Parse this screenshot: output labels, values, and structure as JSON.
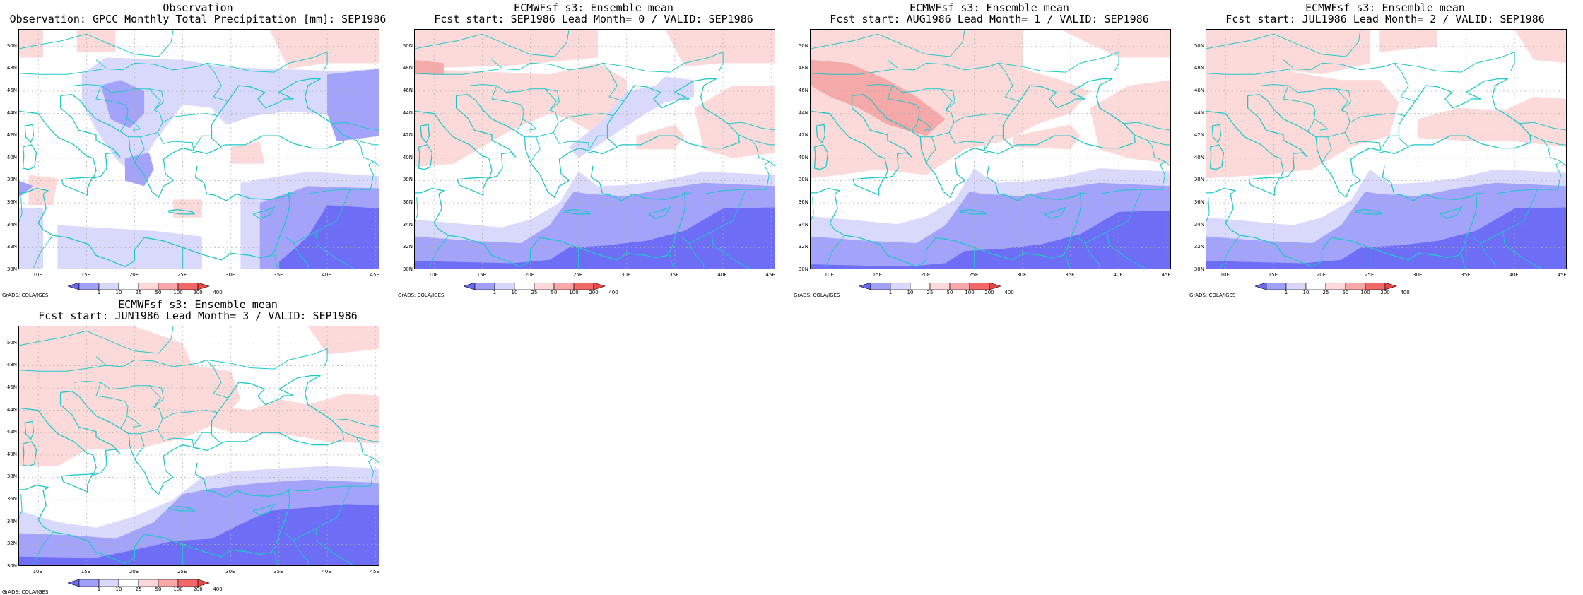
{
  "panels": [
    {
      "id": "p0",
      "title_line1": "Observation",
      "title_line2": "Observation: GPCC Monthly Total Precipitation [mm]: SEP1986",
      "variant": "obs"
    },
    {
      "id": "p1",
      "title_line1": "ECMWFsf s3: Ensemble mean",
      "title_line2": "Fcst start: SEP1986  Lead Month= 0 / VALID: SEP1986",
      "variant": "lead0"
    },
    {
      "id": "p2",
      "title_line1": "ECMWFsf s3: Ensemble mean",
      "title_line2": "Fcst start: AUG1986  Lead Month= 1 / VALID: SEP1986",
      "variant": "lead1"
    },
    {
      "id": "p3",
      "title_line1": "ECMWFsf s3: Ensemble mean",
      "title_line2": "Fcst start: JUL1986  Lead Month= 2 / VALID: SEP1986",
      "variant": "lead2"
    },
    {
      "id": "p4",
      "title_line1": "ECMWFsf s3: Ensemble mean",
      "title_line2": "Fcst start: JUN1986  Lead Month= 3 / VALID: SEP1986",
      "variant": "lead3"
    }
  ],
  "lat_labels": [
    "50N",
    "48N",
    "46N",
    "44N",
    "42N",
    "40N",
    "38N",
    "36N",
    "34N",
    "32N",
    "30N"
  ],
  "lon_labels": [
    "10E",
    "15E",
    "20E",
    "25E",
    "30E",
    "35E",
    "40E",
    "45E"
  ],
  "colorbar_labels": [
    "1",
    "10",
    "25",
    "50",
    "100",
    "200",
    "400"
  ],
  "colorbar_colors": [
    "#6a6af0",
    "#a0a0f8",
    "#d8d8fc",
    "#ffffff",
    "#fcd8d8",
    "#f8a8a8",
    "#f06868",
    "#e84848"
  ],
  "credit": "GrADS: COLA/IGES",
  "colors": {
    "coast": "#1ec8c8",
    "blue_dark": "#6d6df5",
    "blue_mid": "#a3a3f9",
    "blue_light": "#d9d9fc",
    "red_light": "#fcdada",
    "red_mid": "#f6a9a9",
    "grid": "#b0b0b0"
  }
}
